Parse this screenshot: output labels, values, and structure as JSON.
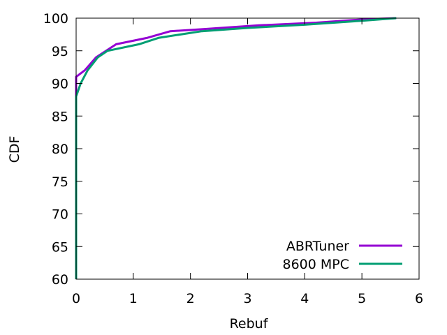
{
  "chart_data": {
    "type": "line",
    "xlabel": "Rebuf",
    "ylabel": "CDF",
    "xlim": [
      0,
      6
    ],
    "ylim": [
      60,
      100
    ],
    "x_ticks": [
      "0",
      "1",
      "2",
      "3",
      "4",
      "5",
      "6"
    ],
    "y_ticks": [
      "60",
      "65",
      "70",
      "75",
      "80",
      "85",
      "90",
      "95",
      "100"
    ],
    "grid": false,
    "legend_position": "bottom-right",
    "series": [
      {
        "name": "ABRTuner",
        "color": "#9400d3",
        "x": [
          0,
          0,
          0.15,
          0.35,
          0.7,
          1.25,
          1.65,
          2.2,
          3.2,
          4.2,
          5.0,
          5.6
        ],
        "y": [
          60,
          91,
          92,
          94,
          96,
          97,
          98,
          98.3,
          98.9,
          99.3,
          99.8,
          100
        ]
      },
      {
        "name": "8600 MPC",
        "color": "#009e73",
        "x": [
          0,
          0,
          0.08,
          0.2,
          0.38,
          0.55,
          1.1,
          1.45,
          2.2,
          3.0,
          4.0,
          5.0,
          5.6
        ],
        "y": [
          60,
          88,
          90,
          92,
          94,
          95,
          96,
          97,
          98,
          98.5,
          99,
          99.6,
          100
        ]
      }
    ]
  }
}
